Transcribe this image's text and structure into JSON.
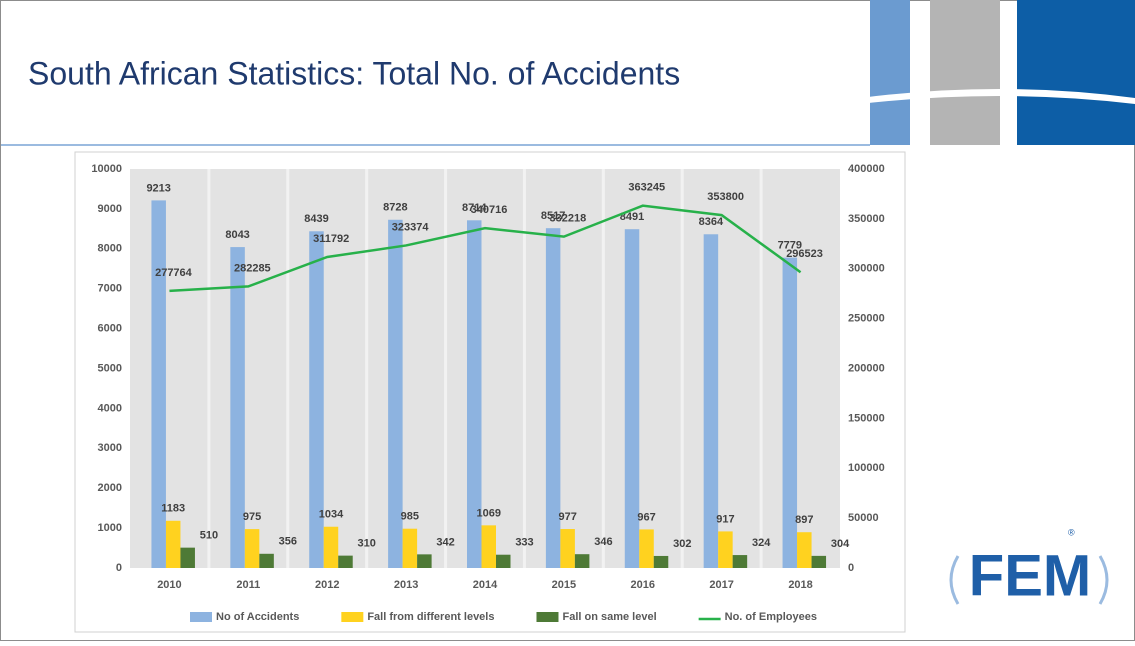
{
  "logo": "FEM",
  "logo_mark": "®",
  "chart_data": {
    "type": "bar",
    "title": "South African Statistics: Total No. of Accidents",
    "categories": [
      "2010",
      "2011",
      "2012",
      "2013",
      "2014",
      "2015",
      "2016",
      "2017",
      "2018"
    ],
    "series": [
      {
        "name": "No of Accidents",
        "color": "#8db3e0",
        "values": [
          9213,
          8043,
          8439,
          8728,
          8714,
          8517,
          8491,
          8364,
          7779
        ]
      },
      {
        "name": "Fall from different levels",
        "color": "#ffd21f",
        "values": [
          1183,
          975,
          1034,
          985,
          1069,
          977,
          967,
          917,
          897
        ]
      },
      {
        "name": "Fall on same level",
        "color": "#4e7a36",
        "values": [
          510,
          356,
          310,
          342,
          333,
          346,
          302,
          324,
          304
        ]
      },
      {
        "name": "No. of Employees",
        "color": "#27b14a",
        "axis": "y2",
        "type": "line",
        "values": [
          277764,
          282285,
          311792,
          323374,
          340716,
          332218,
          363245,
          353800,
          296523
        ]
      }
    ],
    "ylim": [
      0,
      10000
    ],
    "yticks": [
      0,
      1000,
      2000,
      3000,
      4000,
      5000,
      6000,
      7000,
      8000,
      9000,
      10000
    ],
    "y2lim": [
      0,
      400000
    ],
    "y2ticks": [
      0,
      50000,
      100000,
      150000,
      200000,
      250000,
      300000,
      350000,
      400000
    ],
    "grid": false,
    "legend": "bottom"
  }
}
